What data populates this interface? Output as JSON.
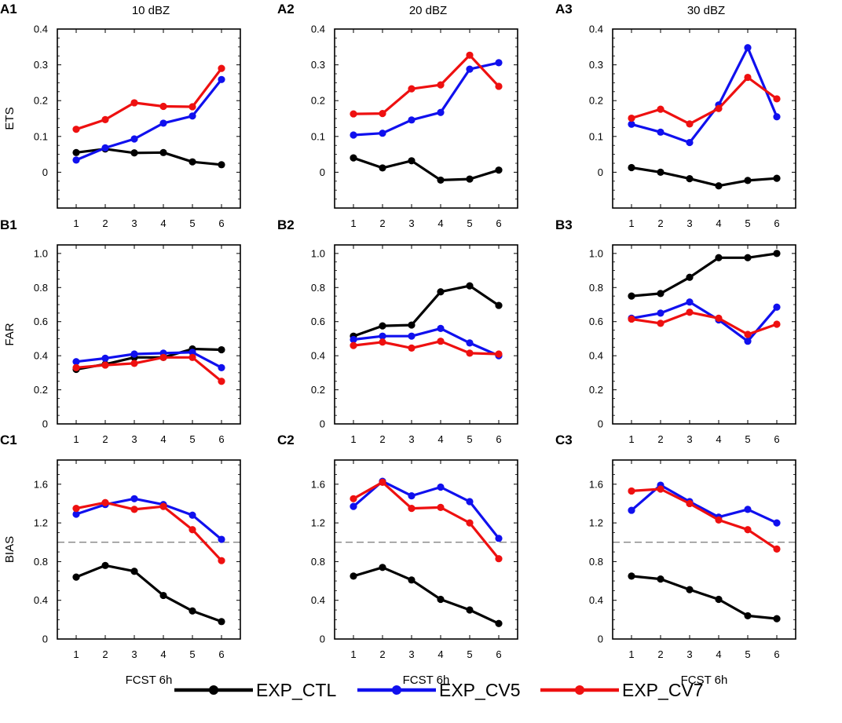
{
  "chart_data": {
    "type": "line",
    "column_titles": [
      "10 dBZ",
      "20 dBZ",
      "30 dBZ"
    ],
    "xlabel": "FCST 6h",
    "x": [
      1,
      2,
      3,
      4,
      5,
      6
    ],
    "legend": [
      {
        "name": "EXP_CTL",
        "color": "#000000"
      },
      {
        "name": "EXP_CV5",
        "color": "#1010ee"
      },
      {
        "name": "EXP_CV7",
        "color": "#ee1010"
      }
    ],
    "rows": [
      {
        "ylabel": "ETS",
        "ylim": [
          -0.1,
          0.4
        ],
        "yticks": [
          "0",
          "0.1",
          "0.2",
          "0.3",
          "0.4"
        ],
        "ytick_values": [
          0,
          0.1,
          0.2,
          0.3,
          0.4
        ]
      },
      {
        "ylabel": "FAR",
        "ylim": [
          0,
          1.05
        ],
        "yticks": [
          "0",
          "0.2",
          "0.4",
          "0.6",
          "0.8",
          "1.0"
        ],
        "ytick_values": [
          0,
          0.2,
          0.4,
          0.6,
          0.8,
          1.0
        ]
      },
      {
        "ylabel": "BIAS",
        "ylim": [
          0,
          1.85
        ],
        "yticks": [
          "0",
          "0.4",
          "0.8",
          "1.2",
          "1.6"
        ],
        "ytick_values": [
          0,
          0.4,
          0.8,
          1.2,
          1.6
        ],
        "reference_line": 1.0
      }
    ],
    "panels": [
      {
        "id": "A1",
        "series": [
          {
            "name": "EXP_CTL",
            "values": [
              0.055,
              0.065,
              0.054,
              0.055,
              0.029,
              0.021
            ]
          },
          {
            "name": "EXP_CV5",
            "values": [
              0.034,
              0.068,
              0.093,
              0.137,
              0.157,
              0.259
            ]
          },
          {
            "name": "EXP_CV7",
            "values": [
              0.12,
              0.147,
              0.194,
              0.184,
              0.183,
              0.29
            ]
          }
        ]
      },
      {
        "id": "A2",
        "series": [
          {
            "name": "EXP_CTL",
            "values": [
              0.04,
              0.012,
              0.032,
              -0.022,
              -0.019,
              0.006
            ]
          },
          {
            "name": "EXP_CV5",
            "values": [
              0.104,
              0.109,
              0.146,
              0.167,
              0.288,
              0.306
            ]
          },
          {
            "name": "EXP_CV7",
            "values": [
              0.163,
              0.164,
              0.233,
              0.244,
              0.327,
              0.24
            ]
          }
        ]
      },
      {
        "id": "A3",
        "series": [
          {
            "name": "EXP_CTL",
            "values": [
              0.013,
              0.0,
              -0.018,
              -0.038,
              -0.023,
              -0.017
            ]
          },
          {
            "name": "EXP_CV5",
            "values": [
              0.134,
              0.112,
              0.083,
              0.188,
              0.348,
              0.155
            ]
          },
          {
            "name": "EXP_CV7",
            "values": [
              0.151,
              0.176,
              0.135,
              0.178,
              0.265,
              0.205
            ]
          }
        ]
      },
      {
        "id": "B1",
        "series": [
          {
            "name": "EXP_CTL",
            "values": [
              0.32,
              0.35,
              0.39,
              0.39,
              0.44,
              0.435
            ]
          },
          {
            "name": "EXP_CV5",
            "values": [
              0.365,
              0.385,
              0.41,
              0.415,
              0.42,
              0.33
            ]
          },
          {
            "name": "EXP_CV7",
            "values": [
              0.33,
              0.345,
              0.355,
              0.39,
              0.39,
              0.25
            ]
          }
        ]
      },
      {
        "id": "B2",
        "series": [
          {
            "name": "EXP_CTL",
            "values": [
              0.515,
              0.575,
              0.58,
              0.775,
              0.81,
              0.695
            ]
          },
          {
            "name": "EXP_CV5",
            "values": [
              0.495,
              0.515,
              0.515,
              0.56,
              0.475,
              0.4
            ]
          },
          {
            "name": "EXP_CV7",
            "values": [
              0.46,
              0.48,
              0.445,
              0.485,
              0.415,
              0.41
            ]
          }
        ]
      },
      {
        "id": "B3",
        "series": [
          {
            "name": "EXP_CTL",
            "values": [
              0.75,
              0.765,
              0.86,
              0.975,
              0.975,
              1.0
            ]
          },
          {
            "name": "EXP_CV5",
            "values": [
              0.62,
              0.65,
              0.715,
              0.61,
              0.485,
              0.685
            ]
          },
          {
            "name": "EXP_CV7",
            "values": [
              0.615,
              0.59,
              0.655,
              0.62,
              0.525,
              0.585
            ]
          }
        ]
      },
      {
        "id": "C1",
        "series": [
          {
            "name": "EXP_CTL",
            "values": [
              0.64,
              0.76,
              0.7,
              0.45,
              0.29,
              0.18
            ]
          },
          {
            "name": "EXP_CV5",
            "values": [
              1.29,
              1.39,
              1.45,
              1.39,
              1.28,
              1.03
            ]
          },
          {
            "name": "EXP_CV7",
            "values": [
              1.35,
              1.41,
              1.34,
              1.37,
              1.13,
              0.81
            ]
          }
        ]
      },
      {
        "id": "C2",
        "series": [
          {
            "name": "EXP_CTL",
            "values": [
              0.65,
              0.74,
              0.61,
              0.41,
              0.3,
              0.16
            ]
          },
          {
            "name": "EXP_CV5",
            "values": [
              1.37,
              1.63,
              1.48,
              1.57,
              1.42,
              1.04
            ]
          },
          {
            "name": "EXP_CV7",
            "values": [
              1.45,
              1.62,
              1.35,
              1.36,
              1.2,
              0.83
            ]
          }
        ]
      },
      {
        "id": "C3",
        "series": [
          {
            "name": "EXP_CTL",
            "values": [
              0.65,
              0.62,
              0.51,
              0.41,
              0.24,
              0.21
            ]
          },
          {
            "name": "EXP_CV5",
            "values": [
              1.33,
              1.59,
              1.42,
              1.26,
              1.34,
              1.2
            ]
          },
          {
            "name": "EXP_CV7",
            "values": [
              1.53,
              1.55,
              1.4,
              1.23,
              1.13,
              0.93
            ]
          }
        ]
      }
    ]
  }
}
